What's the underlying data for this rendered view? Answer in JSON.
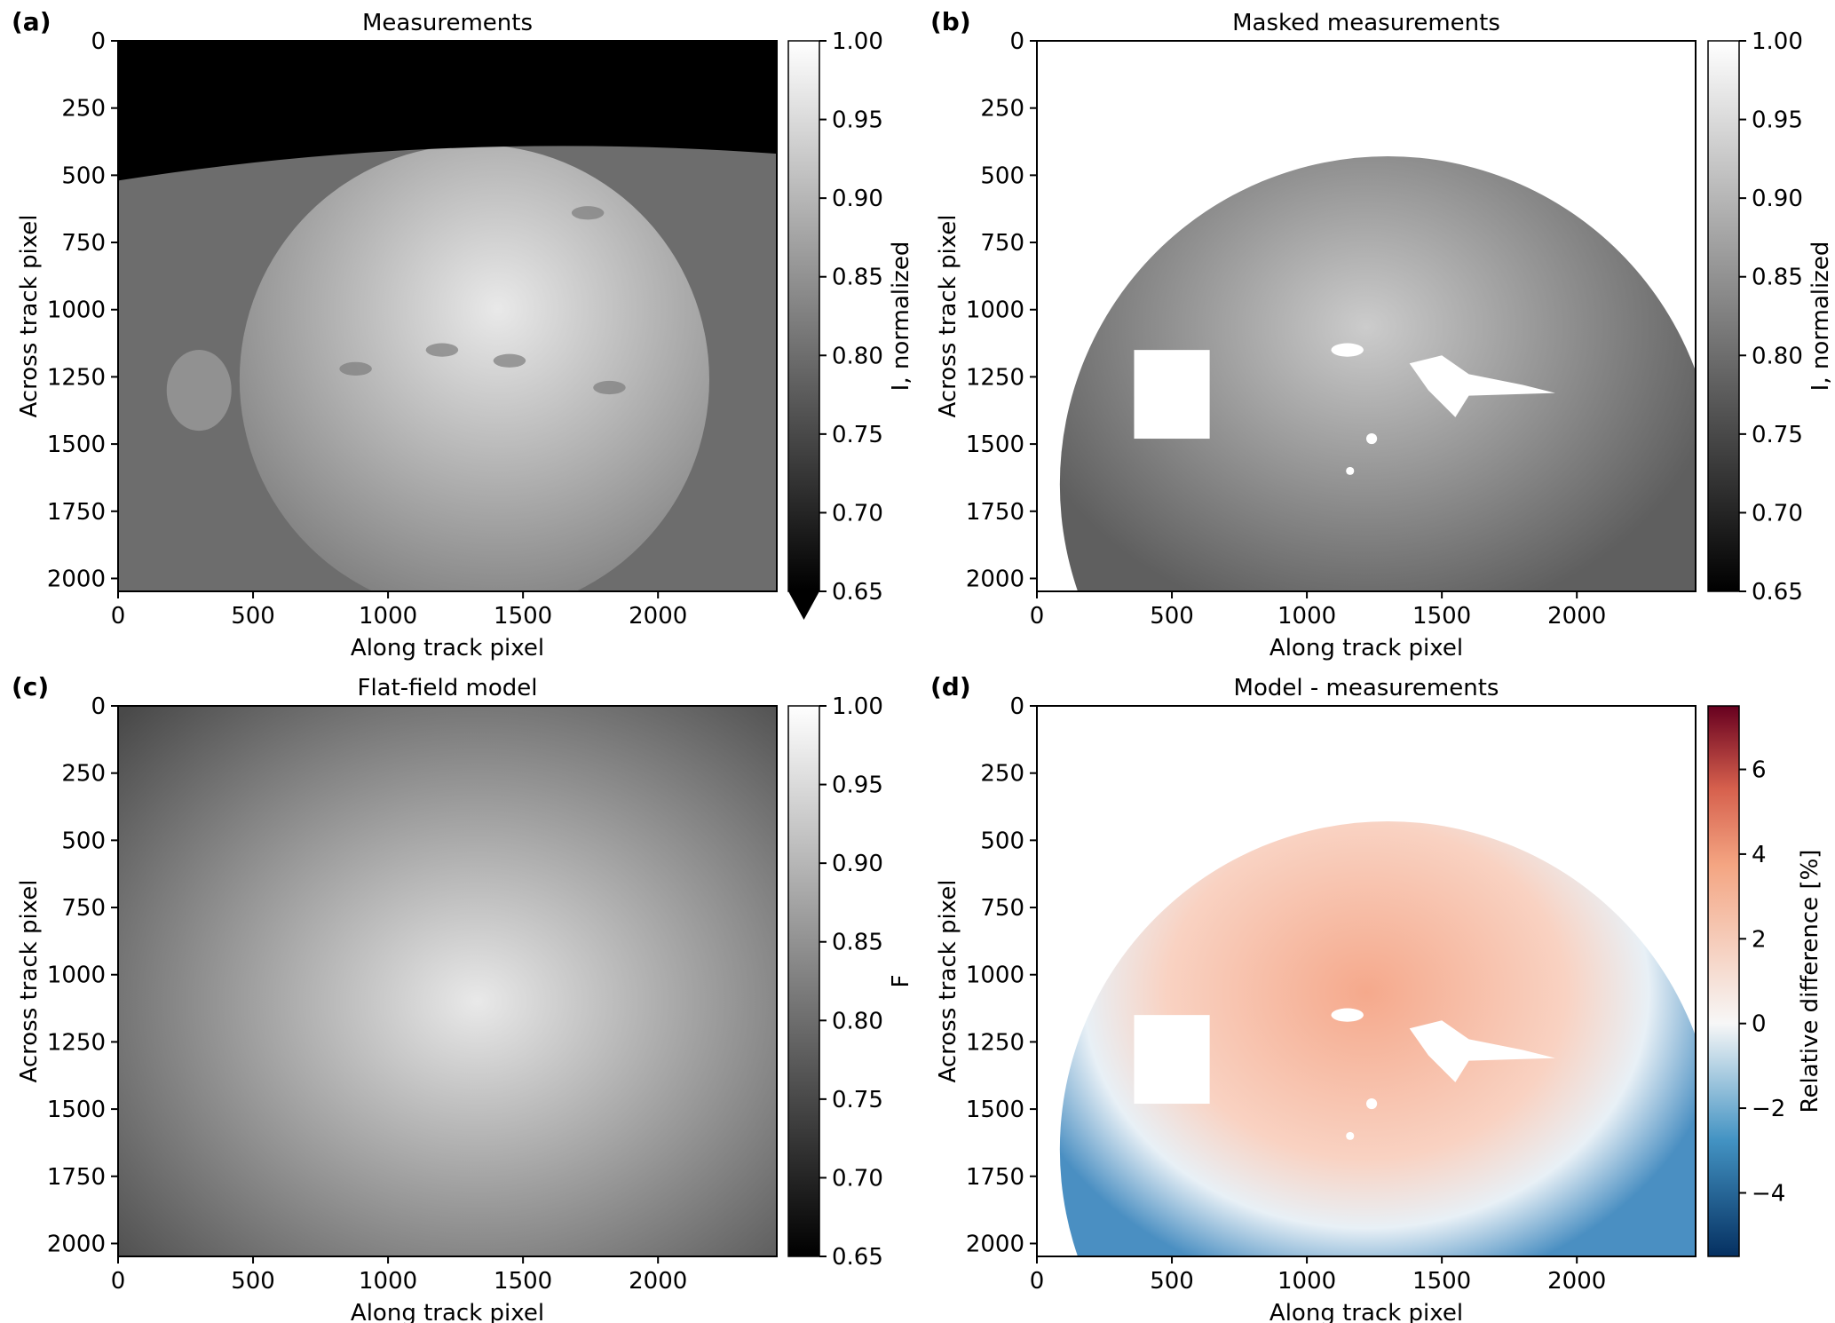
{
  "chart_data": [
    {
      "panel_label": "(a)",
      "type": "heatmap",
      "title": "Measurements",
      "xlabel": "Along track pixel",
      "ylabel": "Across track pixel",
      "xlim": [
        0,
        2440
      ],
      "ylim": [
        2048,
        0
      ],
      "xticks": [
        0,
        500,
        1000,
        1500,
        2000
      ],
      "yticks": [
        0,
        250,
        500,
        750,
        1000,
        1250,
        1500,
        1750,
        2000
      ],
      "colorbar": {
        "label": "I, normalized",
        "range": [
          0.65,
          1.0
        ],
        "ticks": [
          "1.00",
          "0.95",
          "0.90",
          "0.85",
          "0.80",
          "0.75",
          "0.70",
          "0.65"
        ],
        "colormap": "gray",
        "extend": "min"
      },
      "image": {
        "content": "measured sunlit disk image",
        "disk_center": [
          1320,
          1260
        ],
        "disk_radius": 870,
        "top_dark_region_until": 420,
        "disk_brightness_range": [
          0.82,
          0.97
        ],
        "spots": [
          [
            1200,
            1150
          ],
          [
            1450,
            1190
          ],
          [
            1820,
            1290
          ],
          [
            880,
            1220
          ],
          [
            1740,
            640
          ]
        ]
      }
    },
    {
      "panel_label": "(b)",
      "type": "heatmap",
      "title": "Masked measurements",
      "xlabel": "Along track pixel",
      "ylabel": "Across track pixel",
      "xlim": [
        0,
        2440
      ],
      "ylim": [
        2048,
        0
      ],
      "xticks": [
        0,
        500,
        1000,
        1500,
        2000
      ],
      "yticks": [
        0,
        250,
        500,
        750,
        1000,
        1250,
        1500,
        1750,
        2000
      ],
      "colorbar": {
        "label": "I, normalized",
        "range": [
          0.65,
          1.0
        ],
        "ticks": [
          "1.00",
          "0.95",
          "0.90",
          "0.85",
          "0.80",
          "0.75",
          "0.70",
          "0.65"
        ],
        "colormap": "gray"
      },
      "image": {
        "content": "measured disk with masked regions",
        "disk_center": [
          1300,
          1650
        ],
        "disk_radius": 1215,
        "masked_rectangle": [
          360,
          1150,
          640,
          1480
        ],
        "masked_blobs": [
          [
            1150,
            1150
          ],
          [
            1480,
            1240
          ],
          [
            1240,
            1480
          ],
          [
            1160,
            1600
          ]
        ]
      }
    },
    {
      "panel_label": "(c)",
      "type": "heatmap",
      "title": "Flat-field model",
      "xlabel": "Along track pixel",
      "ylabel": "Across track pixel",
      "xlim": [
        0,
        2440
      ],
      "ylim": [
        2048,
        0
      ],
      "xticks": [
        0,
        500,
        1000,
        1500,
        2000
      ],
      "yticks": [
        0,
        250,
        500,
        750,
        1000,
        1250,
        1500,
        1750,
        2000
      ],
      "colorbar": {
        "label": "F",
        "range": [
          0.65,
          1.0
        ],
        "ticks": [
          "1.00",
          "0.95",
          "0.90",
          "0.85",
          "0.80",
          "0.75",
          "0.70",
          "0.65"
        ],
        "colormap": "gray"
      },
      "image": {
        "content": "smooth radial falloff model",
        "peak_center": [
          1330,
          1100
        ],
        "peak_value": 0.97,
        "corner_value": 0.75
      }
    },
    {
      "panel_label": "(d)",
      "type": "heatmap",
      "title": "Model - measurements",
      "xlabel": "Along track pixel",
      "ylabel": "Across track pixel",
      "xlim": [
        0,
        2440
      ],
      "ylim": [
        2048,
        0
      ],
      "xticks": [
        0,
        500,
        1000,
        1500,
        2000
      ],
      "yticks": [
        0,
        250,
        500,
        750,
        1000,
        1250,
        1500,
        1750,
        2000
      ],
      "colorbar": {
        "label": "Relative difference [%]",
        "range": [
          -5.5,
          7.5
        ],
        "ticks": [
          "6",
          "4",
          "2",
          "0",
          "−2",
          "−4"
        ],
        "tick_values": [
          6,
          4,
          2,
          0,
          -2,
          -4
        ],
        "colormap": "RdBu_r",
        "low_color": "#053061",
        "mid_color": "#f7f7f7",
        "high_color": "#67001f"
      },
      "image": {
        "content": "relative difference map, positive center, negative edges",
        "disk_center": [
          1300,
          1650
        ],
        "disk_radius": 1215,
        "center_value": 2.0,
        "edge_value": -3.5,
        "masked_rectangle": [
          360,
          1150,
          640,
          1480
        ],
        "masked_blobs": [
          [
            1150,
            1150
          ],
          [
            1480,
            1240
          ],
          [
            1240,
            1480
          ],
          [
            1160,
            1600
          ]
        ]
      }
    }
  ]
}
